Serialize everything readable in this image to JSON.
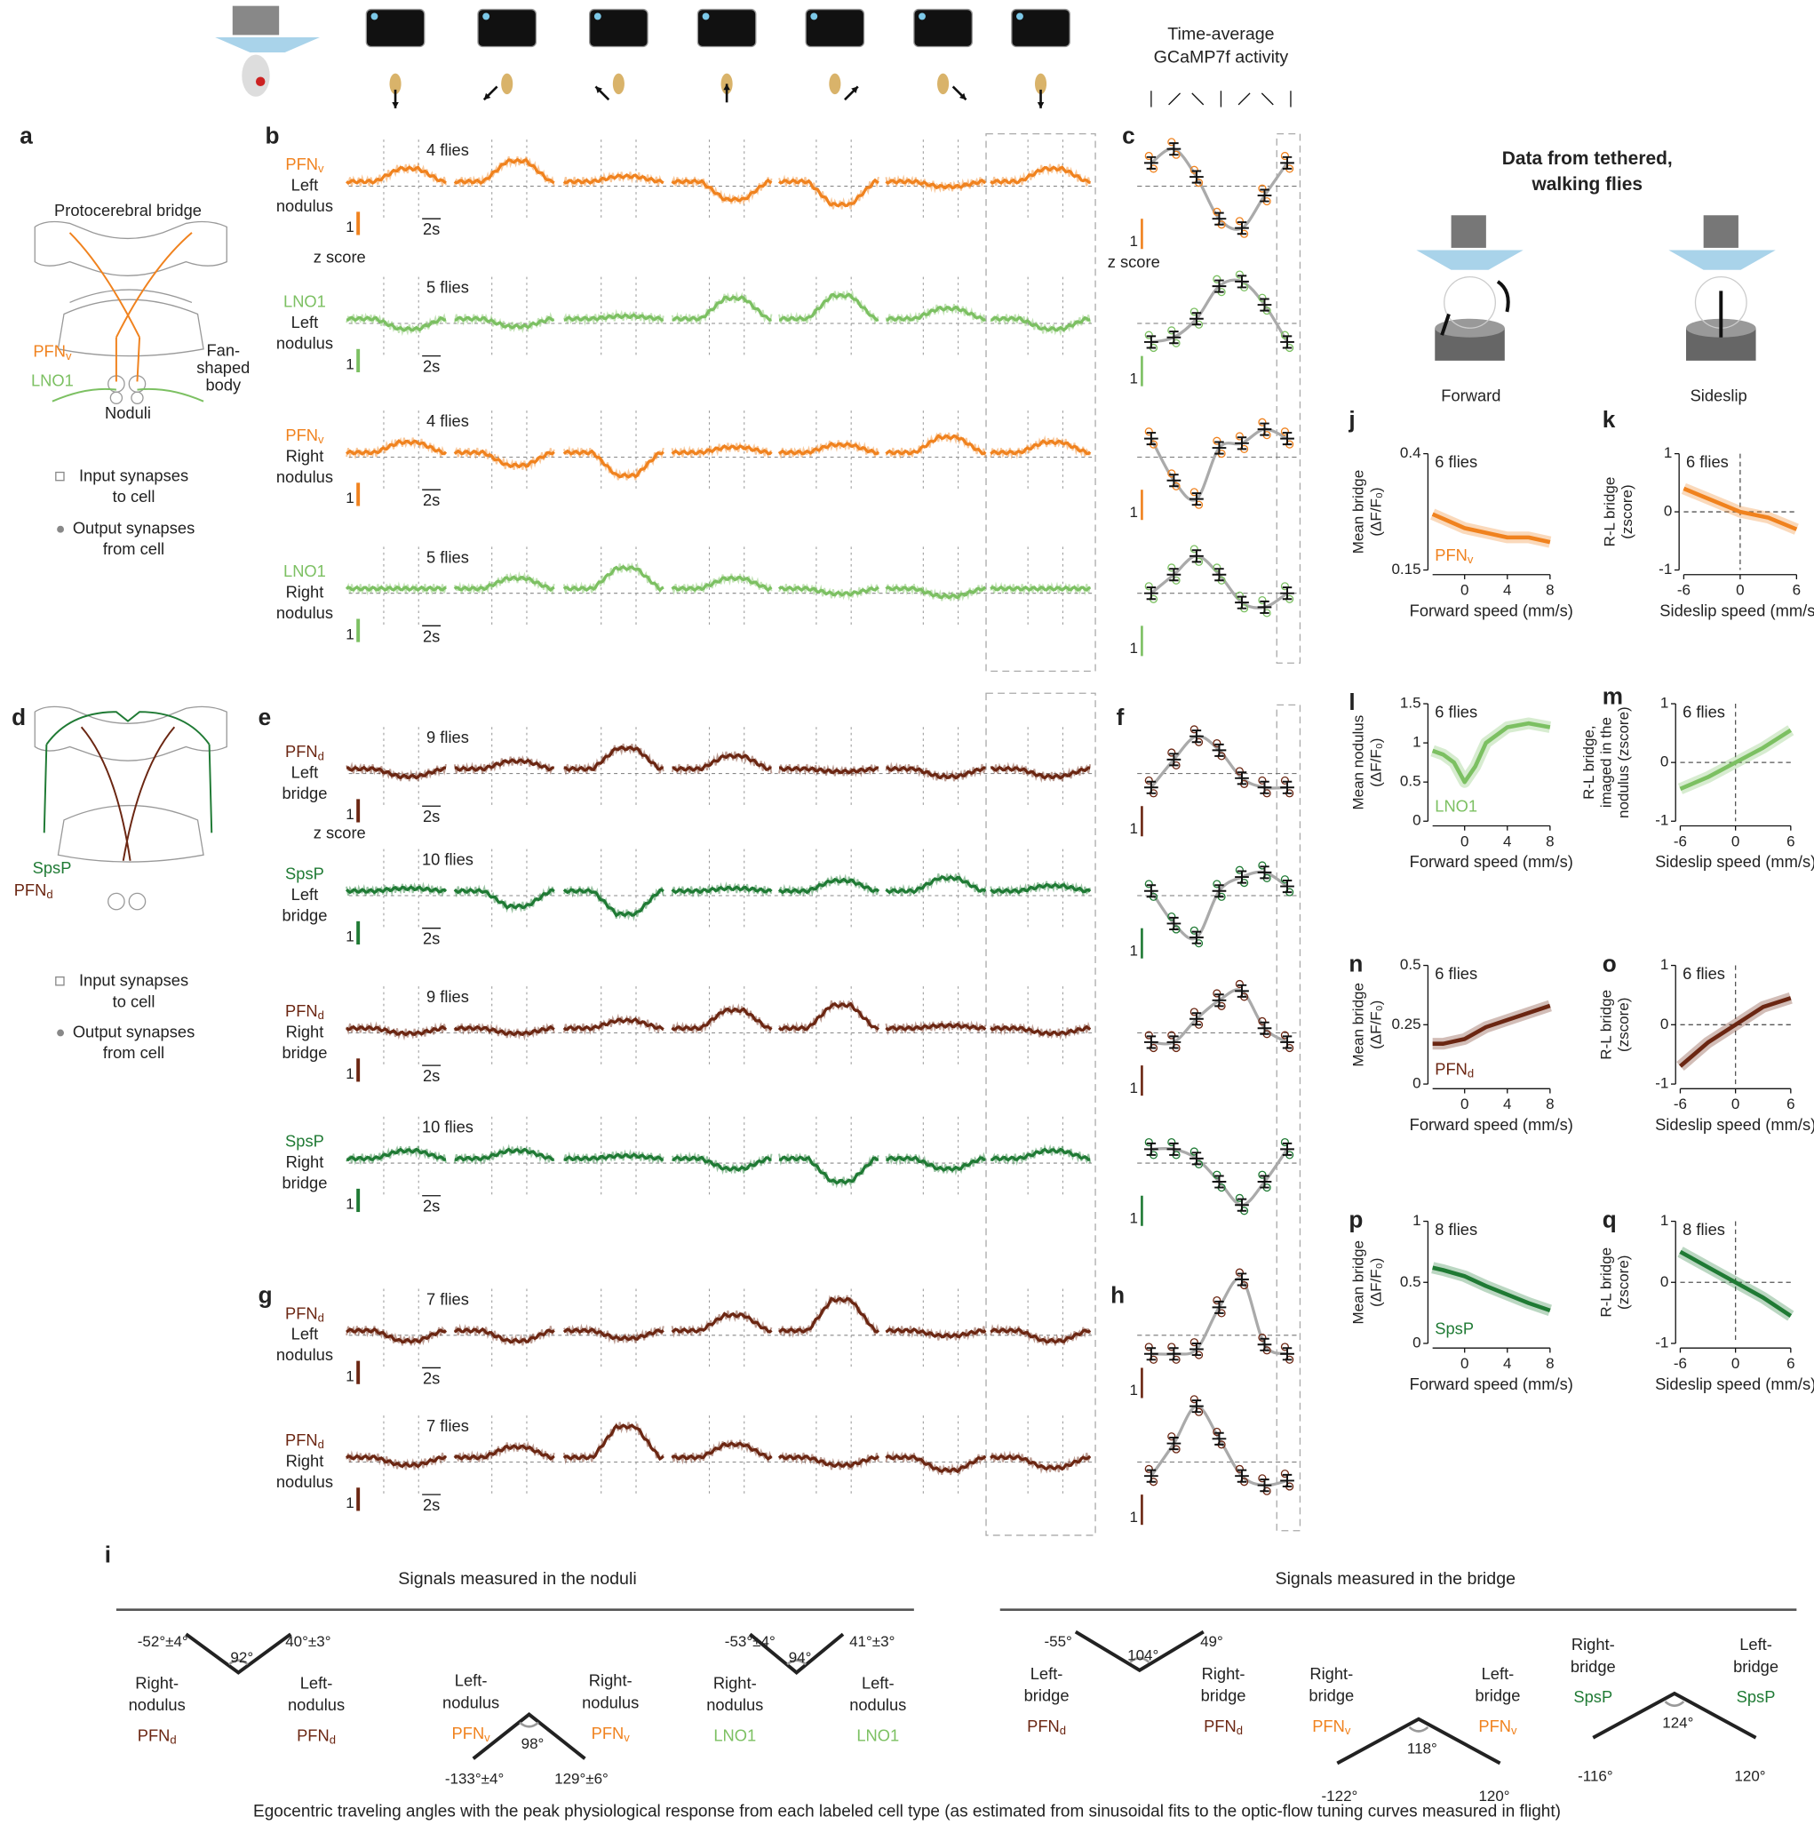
{
  "panel_labels": [
    "a",
    "b",
    "c",
    "d",
    "e",
    "f",
    "g",
    "h",
    "i",
    "j",
    "k",
    "l",
    "m",
    "n",
    "o",
    "p",
    "q"
  ],
  "header": {
    "avg_title": [
      "Time-average",
      "GCaMP7f activity"
    ]
  },
  "anatomy": [
    {
      "title": "Protocerebral bridge",
      "body": [
        "Fan-",
        "shaped",
        "body"
      ],
      "noduli": "Noduli",
      "cells": [
        {
          "name": "PFN",
          "sub": "v",
          "color": "#f0821e"
        },
        {
          "name": "LNO1",
          "color": "#7cc062"
        }
      ],
      "legend": [
        [
          "Input synapses",
          "to cell"
        ],
        [
          "Output synapses",
          "from cell"
        ]
      ]
    },
    {
      "cells": [
        {
          "name": "SpsP",
          "color": "#1f7a34"
        },
        {
          "name": "PFN",
          "sub": "d",
          "color": "#6b2612"
        }
      ],
      "legend": [
        [
          "Input synapses",
          "to cell"
        ],
        [
          "Output synapses",
          "from cell"
        ]
      ]
    }
  ],
  "trace_scale": {
    "z": "z score",
    "time": "2s",
    "unit": "1"
  },
  "rows": [
    {
      "cell": {
        "name": "PFN",
        "sub": "v",
        "color": "#f0821e"
      },
      "region": [
        "Left",
        "nodulus"
      ],
      "flies": "4 flies",
      "responses": [
        0.5,
        0.8,
        0.2,
        -0.7,
        -0.9,
        -0.2,
        0.5
      ]
    },
    {
      "cell": {
        "name": "LNO1",
        "color": "#7cc062"
      },
      "region": [
        "Left",
        "nodulus"
      ],
      "flies": "5 flies",
      "responses": [
        -0.4,
        -0.3,
        0.1,
        0.8,
        0.9,
        0.4,
        -0.4
      ]
    },
    {
      "cell": {
        "name": "PFN",
        "sub": "v",
        "color": "#f0821e"
      },
      "region": [
        "Right",
        "nodulus"
      ],
      "flies": "4 flies",
      "responses": [
        0.4,
        -0.5,
        -0.9,
        0.2,
        0.3,
        0.6,
        0.4
      ]
    },
    {
      "cell": {
        "name": "LNO1",
        "color": "#7cc062"
      },
      "region": [
        "Right",
        "nodulus"
      ],
      "flies": "5 flies",
      "responses": [
        0,
        0.4,
        0.8,
        0.4,
        -0.2,
        -0.3,
        0
      ]
    },
    {
      "cell": {
        "name": "PFN",
        "sub": "d",
        "color": "#6b2612"
      },
      "region": [
        "Left",
        "bridge"
      ],
      "flies": "9 flies",
      "responses": [
        -0.3,
        0.3,
        0.8,
        0.5,
        -0.1,
        -0.3,
        -0.3
      ]
    },
    {
      "cell": {
        "name": "SpsP",
        "color": "#1f7a34"
      },
      "region": [
        "Left",
        "bridge"
      ],
      "flies": "10 flies",
      "responses": [
        0.1,
        -0.6,
        -0.9,
        0.1,
        0.4,
        0.5,
        0.2
      ]
    },
    {
      "cell": {
        "name": "PFN",
        "sub": "d",
        "color": "#6b2612"
      },
      "region": [
        "Right",
        "bridge"
      ],
      "flies": "9 flies",
      "responses": [
        -0.2,
        -0.2,
        0.3,
        0.7,
        0.9,
        0.1,
        -0.2
      ]
    },
    {
      "cell": {
        "name": "SpsP",
        "color": "#1f7a34"
      },
      "region": [
        "Right",
        "bridge"
      ],
      "flies": "10 flies",
      "responses": [
        0.3,
        0.3,
        0.1,
        -0.4,
        -0.9,
        -0.4,
        0.3
      ]
    },
    {
      "cell": {
        "name": "PFN",
        "sub": "d",
        "color": "#6b2612"
      },
      "region": [
        "Left",
        "nodulus"
      ],
      "flies": "7 flies",
      "responses": [
        -0.4,
        -0.4,
        -0.3,
        0.6,
        1.2,
        -0.2,
        -0.4
      ]
    },
    {
      "cell": {
        "name": "PFN",
        "sub": "d",
        "color": "#6b2612"
      },
      "region": [
        "Right",
        "nodulus"
      ],
      "flies": "7 flies",
      "responses": [
        -0.3,
        0.4,
        1.2,
        0.5,
        -0.3,
        -0.5,
        -0.4
      ]
    }
  ],
  "walking": {
    "title": [
      "Data from tethered,",
      "walking flies"
    ],
    "forward": "Forward",
    "sideslip": "Sideslip"
  },
  "plots": [
    {
      "ylabel": [
        "Mean bridge",
        "(ΔF/F₀)"
      ],
      "flies": "6 flies",
      "cell": {
        "name": "PFN",
        "sub": "v",
        "color": "#f0821e"
      },
      "xlabel": "Forward speed (mm/s)",
      "xlim": [
        -3,
        8
      ],
      "xticks": [
        0,
        4,
        8
      ],
      "ylim": [
        0.15,
        0.4
      ],
      "yticks": [
        0.15,
        0.4
      ],
      "x": [
        -3,
        -2,
        0,
        2,
        4,
        6,
        8
      ],
      "values": [
        0.27,
        0.26,
        0.24,
        0.23,
        0.22,
        0.22,
        0.21
      ]
    },
    {
      "ylabel": [
        "R-L bridge",
        "(zscore)"
      ],
      "flies": "6 flies",
      "color": "#f0821e",
      "xlabel": "Sideslip speed (mm/s)",
      "xlim": [
        -6,
        6
      ],
      "xticks": [
        -6,
        0,
        6
      ],
      "ylim": [
        -1,
        1
      ],
      "yticks": [
        -1,
        0,
        1
      ],
      "x": [
        -6,
        -3,
        0,
        3,
        6
      ],
      "values": [
        0.4,
        0.2,
        0,
        -0.1,
        -0.3
      ]
    },
    {
      "ylabel": [
        "Mean nodulus",
        "(ΔF/F₀)"
      ],
      "flies": "6 flies",
      "cell": {
        "name": "LNO1",
        "color": "#7cc062"
      },
      "xlabel": "Forward speed (mm/s)",
      "xlim": [
        -3,
        8
      ],
      "xticks": [
        0,
        4,
        8
      ],
      "ylim": [
        0,
        1.5
      ],
      "yticks": [
        0,
        0.5,
        1,
        1.5
      ],
      "x": [
        -3,
        -2,
        -1,
        0,
        1,
        2,
        4,
        6,
        8
      ],
      "values": [
        0.9,
        0.85,
        0.75,
        0.5,
        0.7,
        1.0,
        1.2,
        1.25,
        1.2
      ]
    },
    {
      "ylabel": [
        "R-L bridge,",
        "imaged in the",
        "nodulus (zscore)"
      ],
      "flies": "6 flies",
      "color": "#7cc062",
      "xlabel": "Sideslip speed (mm/s)",
      "xlim": [
        -6,
        6
      ],
      "xticks": [
        -6,
        0,
        6
      ],
      "ylim": [
        -1,
        1
      ],
      "yticks": [
        -1,
        0,
        1
      ],
      "x": [
        -6,
        -3,
        0,
        3,
        6
      ],
      "values": [
        -0.45,
        -0.25,
        0,
        0.25,
        0.55
      ]
    },
    {
      "ylabel": [
        "Mean bridge",
        "(ΔF/F₀)"
      ],
      "flies": "6 flies",
      "cell": {
        "name": "PFN",
        "sub": "d",
        "color": "#6b2612"
      },
      "xlabel": "Forward speed (mm/s)",
      "xlim": [
        -3,
        8
      ],
      "xticks": [
        0,
        4,
        8
      ],
      "ylim": [
        0,
        0.5
      ],
      "yticks": [
        0,
        0.25,
        0.5
      ],
      "x": [
        -3,
        -2,
        0,
        2,
        4,
        6,
        8
      ],
      "values": [
        0.17,
        0.17,
        0.19,
        0.24,
        0.27,
        0.3,
        0.33
      ]
    },
    {
      "ylabel": [
        "R-L bridge",
        "(zscore)"
      ],
      "flies": "6 flies",
      "color": "#6b2612",
      "xlabel": "Sideslip speed (mm/s)",
      "xlim": [
        -6,
        6
      ],
      "xticks": [
        -6,
        0,
        6
      ],
      "ylim": [
        -1,
        1
      ],
      "yticks": [
        -1,
        0,
        1
      ],
      "x": [
        -6,
        -3,
        0,
        3,
        6
      ],
      "values": [
        -0.7,
        -0.3,
        0,
        0.3,
        0.45
      ]
    },
    {
      "ylabel": [
        "Mean bridge",
        "(ΔF/F₀)"
      ],
      "flies": "8 flies",
      "cell": {
        "name": "SpsP",
        "color": "#1f7a34"
      },
      "xlabel": "Forward speed (mm/s)",
      "xlim": [
        -3,
        8
      ],
      "xticks": [
        0,
        4,
        8
      ],
      "ylim": [
        0,
        1
      ],
      "yticks": [
        0,
        0.5,
        1
      ],
      "x": [
        -3,
        -2,
        0,
        2,
        4,
        6,
        8
      ],
      "values": [
        0.62,
        0.6,
        0.55,
        0.47,
        0.4,
        0.33,
        0.27
      ]
    },
    {
      "ylabel": [
        "R-L bridge",
        "(zscore)"
      ],
      "flies": "8 flies",
      "color": "#1f7a34",
      "xlabel": "Sideslip speed (mm/s)",
      "xlim": [
        -6,
        6
      ],
      "xticks": [
        -6,
        0,
        6
      ],
      "ylim": [
        -1,
        1
      ],
      "yticks": [
        -1,
        0,
        1
      ],
      "x": [
        -6,
        -3,
        0,
        3,
        6
      ],
      "values": [
        0.5,
        0.25,
        0,
        -0.25,
        -0.55
      ]
    }
  ],
  "angles": {
    "noduli_title": "Signals measured in the noduli",
    "bridge_title": "Signals measured in the bridge",
    "diagrams": [
      {
        "left": [
          "Right-",
          "nodulus"
        ],
        "right": [
          "Left-",
          "nodulus"
        ],
        "left_cell": {
          "name": "PFN",
          "sub": "d",
          "color": "#6b2612"
        },
        "right_cell": {
          "name": "PFN",
          "sub": "d",
          "color": "#6b2612"
        },
        "left_angle": "-52°±4°",
        "right_angle": "40°±3°",
        "apex": "92°"
      },
      {
        "left": [
          "Left-",
          "nodulus"
        ],
        "right": [
          "Right-",
          "nodulus"
        ],
        "left_cell": {
          "name": "PFN",
          "sub": "v",
          "color": "#f0821e"
        },
        "right_cell": {
          "name": "PFN",
          "sub": "v",
          "color": "#f0821e"
        },
        "left_angle": "-133°±4°",
        "right_angle": "129°±6°",
        "apex": "98°"
      },
      {
        "left": [
          "Right-",
          "nodulus"
        ],
        "right": [
          "Left-",
          "nodulus"
        ],
        "left_cell": {
          "name": "LNO1",
          "color": "#7cc062"
        },
        "right_cell": {
          "name": "LNO1",
          "color": "#7cc062"
        },
        "left_angle": "-53°±4°",
        "right_angle": "41°±3°",
        "apex": "94°"
      },
      {
        "left": [
          "Left-",
          "bridge"
        ],
        "right": [
          "Right-",
          "bridge"
        ],
        "left_cell": {
          "name": "PFN",
          "sub": "d",
          "color": "#6b2612"
        },
        "right_cell": {
          "name": "PFN",
          "sub": "d",
          "color": "#6b2612"
        },
        "left_angle": "-55°",
        "right_angle": "49°",
        "apex": "104°"
      },
      {
        "left": [
          "Right-",
          "bridge"
        ],
        "right": [
          "Left-",
          "bridge"
        ],
        "left_cell": {
          "name": "PFN",
          "sub": "v",
          "color": "#f0821e"
        },
        "right_cell": {
          "name": "PFN",
          "sub": "v",
          "color": "#f0821e"
        },
        "left_angle": "-122°",
        "right_angle": "120°",
        "apex": "118°"
      },
      {
        "left": [
          "Right-",
          "bridge"
        ],
        "right": [
          "Left-",
          "bridge"
        ],
        "left_cell": {
          "name": "SpsP",
          "color": "#1f7a34"
        },
        "right_cell": {
          "name": "SpsP",
          "color": "#1f7a34"
        },
        "left_angle": "-116°",
        "right_angle": "120°",
        "apex": "124°"
      }
    ],
    "caption": "Egocentric traveling angles with the peak physiological response from each labeled cell type (as estimated from sinusoidal fits to the optic-flow tuning curves measured in flight)"
  }
}
